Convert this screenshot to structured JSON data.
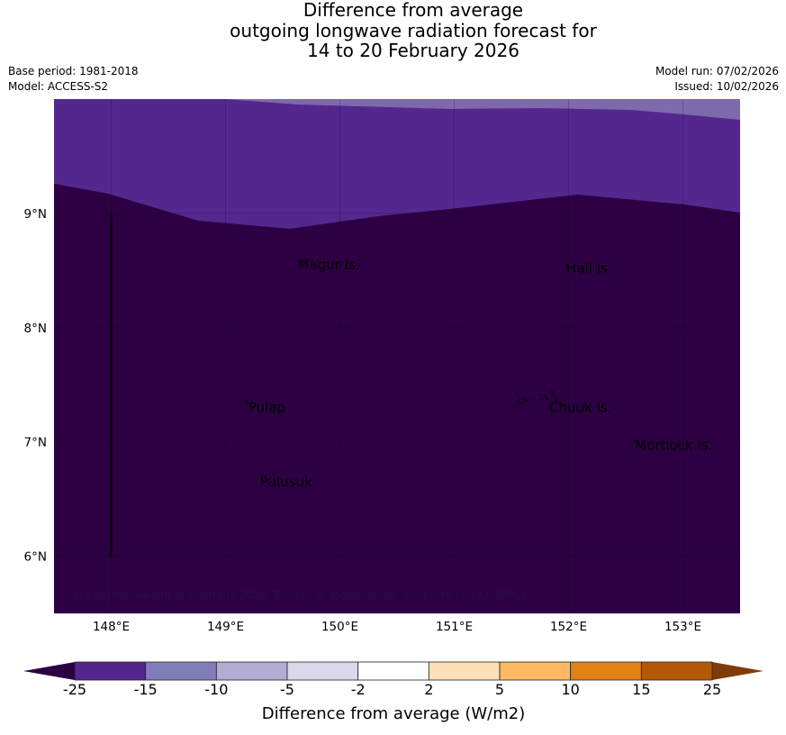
{
  "title": {
    "line1": "Difference from average",
    "line2": "outgoing longwave radiation forecast for",
    "line3": "14 to 20 February 2026"
  },
  "meta": {
    "base_period": "Base period: 1981-2018",
    "model": "Model: ACCESS-S2",
    "model_run": "Model run: 07/02/2026",
    "issued": "Issued: 10/02/2026"
  },
  "map": {
    "lon_range": [
      147.5,
      153.5
    ],
    "lat_range": [
      5.5,
      10.0
    ],
    "lon_ticks": [
      {
        "value": 148,
        "label": "148°E"
      },
      {
        "value": 149,
        "label": "149°E"
      },
      {
        "value": 150,
        "label": "150°E"
      },
      {
        "value": 151,
        "label": "151°E"
      },
      {
        "value": 152,
        "label": "152°E"
      },
      {
        "value": 153,
        "label": "153°E"
      }
    ],
    "lat_ticks": [
      {
        "value": 9,
        "label": "9°N"
      },
      {
        "value": 8,
        "label": "8°N"
      },
      {
        "value": 7,
        "label": "7°N"
      },
      {
        "value": 6,
        "label": "6°N"
      }
    ],
    "places": [
      {
        "name": "Magur Is.",
        "lon": 149.63,
        "lat": 8.55
      },
      {
        "name": "Hall Is.",
        "lon": 151.98,
        "lat": 8.52
      },
      {
        "name": "Pulap",
        "lon": 149.2,
        "lat": 7.3
      },
      {
        "name": "Chuuk Is.",
        "lon": 151.83,
        "lat": 7.3
      },
      {
        "name": "Mortlock Is.",
        "lon": 152.58,
        "lat": 6.97
      },
      {
        "name": "Pulusuk",
        "lon": 149.3,
        "lat": 6.65
      }
    ],
    "boundary_line": {
      "lon": 148.0,
      "lat_from": 6.0,
      "lat_to": 9.0
    },
    "copyright": "© Commonwealth of Australia 2026, Bureau of Meteorology. Supported by COSPPac",
    "colors": {
      "deep": "#2d0043",
      "mid": "#54278f",
      "light": "#7c6aab"
    }
  },
  "colorbar": {
    "title": "Difference from average (W/m2)",
    "labels": [
      "-25",
      "-15",
      "-10",
      "-5",
      "-2",
      "2",
      "5",
      "10",
      "15",
      "25"
    ],
    "colors": [
      "#54278f",
      "#807dba",
      "#b2abd2",
      "#d8daeb",
      "#ffffff",
      "#fee0b6",
      "#fdb863",
      "#e08214",
      "#b35806"
    ],
    "under_color": "#2d0043",
    "over_color": "#7f3b08"
  }
}
